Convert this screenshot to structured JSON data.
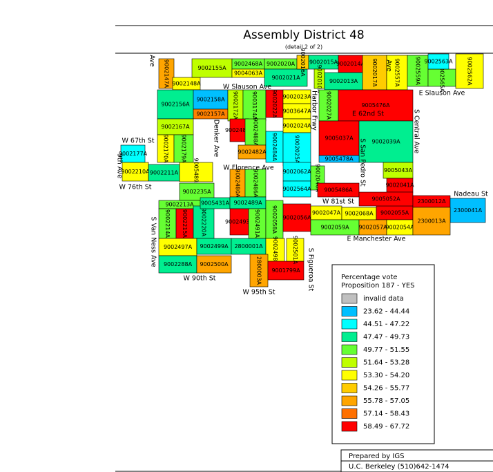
{
  "title": "Assembly District 48",
  "subtitle": "(detail 2 of 2)",
  "precincts": [
    {
      "label": "9002147A",
      "color": "#ffa500"
    },
    {
      "label": "9002148A",
      "color": "#ffff00"
    },
    {
      "label": "9002155A",
      "color": "#bfff00"
    },
    {
      "label": "9002468A",
      "color": "#66ff33"
    },
    {
      "label": "9004063A",
      "color": "#ffff00"
    },
    {
      "label": "9002020A",
      "color": "#66ff33"
    },
    {
      "label": "9002021A",
      "color": "#00ee90"
    },
    {
      "label": "9002016A",
      "color": "#ffcc00"
    },
    {
      "label": "9002015A",
      "color": "#00ee90"
    },
    {
      "label": "9002014A",
      "color": "#ff0000"
    },
    {
      "label": "9002010A",
      "color": "#bfff00"
    },
    {
      "label": "9002013A",
      "color": "#00ee90"
    },
    {
      "label": "9002017A",
      "color": "#ffcc00"
    },
    {
      "label": "9002557A",
      "color": "#ffff00"
    },
    {
      "label": "9002559A",
      "color": "#66ff33"
    },
    {
      "label": "9002565A",
      "color": "#66ff33"
    },
    {
      "label": "9002563A",
      "color": "#00ffff"
    },
    {
      "label": "9002562A",
      "color": "#ffff00"
    },
    {
      "label": "9002156A",
      "color": "#00ee90"
    },
    {
      "label": "9002158A",
      "color": "#00bfff"
    },
    {
      "label": "9002157A",
      "color": "#ff8000"
    },
    {
      "label": "9002172A",
      "color": "#bfff00"
    },
    {
      "label": "9003174A",
      "color": "#66ff33"
    },
    {
      "label": "9002022A",
      "color": "#ff0000"
    },
    {
      "label": "9002023A",
      "color": "#ffff00"
    },
    {
      "label": "9003647A",
      "color": "#ffff00"
    },
    {
      "label": "9002027A",
      "color": "#66ff33"
    },
    {
      "label": "9005476A",
      "color": "#ff0000"
    },
    {
      "label": "9002167A",
      "color": "#bfff00"
    },
    {
      "label": "9002170A",
      "color": "#ffff00"
    },
    {
      "label": "9002177A",
      "color": "#00ffff"
    },
    {
      "label": "9002179A",
      "color": "#66ff33"
    },
    {
      "label": "9002483A",
      "color": "#ff0000"
    },
    {
      "label": "9002488A",
      "color": "#66ff33"
    },
    {
      "label": "9002482A",
      "color": "#ffa500"
    },
    {
      "label": "9002484A",
      "color": "#00ffff"
    },
    {
      "label": "9002024A",
      "color": "#ffff00"
    },
    {
      "label": "9002025A",
      "color": "#00ffff"
    },
    {
      "label": "9005037A",
      "color": "#ff0000"
    },
    {
      "label": "9002039A",
      "color": "#00ee90"
    },
    {
      "label": "9005478A",
      "color": "#00bfff"
    },
    {
      "label": "9002210A",
      "color": "#ffff00"
    },
    {
      "label": "9002211A",
      "color": "#00ee90"
    },
    {
      "label": "9005489A",
      "color": "#ffff00"
    },
    {
      "label": "9002480A",
      "color": "#ffa500"
    },
    {
      "label": "9002486A",
      "color": "#66ff33"
    },
    {
      "label": "9002062A",
      "color": "#00ffff"
    },
    {
      "label": "9002564A",
      "color": "#00ffff"
    },
    {
      "label": "9002040A",
      "color": "#66ff33"
    },
    {
      "label": "9005486A",
      "color": "#ff0000"
    },
    {
      "label": "9005043A",
      "color": "#bfff00"
    },
    {
      "label": "9002041A",
      "color": "#ff0000"
    },
    {
      "label": "9002235A",
      "color": "#66ff33"
    },
    {
      "label": "9002213A",
      "color": "#66ff33"
    },
    {
      "label": "9002214A",
      "color": "#66ff33"
    },
    {
      "label": "9002215A",
      "color": "#ff0000"
    },
    {
      "label": "9002220A",
      "color": "#00ee90"
    },
    {
      "label": "9005431A",
      "color": "#00ee90"
    },
    {
      "label": "9002489A",
      "color": "#00ee90"
    },
    {
      "label": "9002493A",
      "color": "#ff0000"
    },
    {
      "label": "9002491A",
      "color": "#66ff33"
    },
    {
      "label": "9002058A",
      "color": "#66ff33"
    },
    {
      "label": "9002056A",
      "color": "#ff0000"
    },
    {
      "label": "9002047A",
      "color": "#ffff00"
    },
    {
      "label": "9002068A",
      "color": "#ffff00"
    },
    {
      "label": "9002055A",
      "color": "#ff0000"
    },
    {
      "label": "9002059A",
      "color": "#66ff33"
    },
    {
      "label": "9002057A",
      "color": "#ffa500"
    },
    {
      "label": "9002054A",
      "color": "#ffff00"
    },
    {
      "label": "9005052A",
      "color": "#ff0000"
    },
    {
      "label": "2300012A",
      "color": "#ff0000"
    },
    {
      "label": "2300041A",
      "color": "#00bfff"
    },
    {
      "label": "2300013A",
      "color": "#ffa500"
    },
    {
      "label": "9002497A",
      "color": "#ffff00"
    },
    {
      "label": "9002499A",
      "color": "#00ee90"
    },
    {
      "label": "2800001A",
      "color": "#00ee90"
    },
    {
      "label": "9002498A",
      "color": "#ffff00"
    },
    {
      "label": "9002288A",
      "color": "#00ee90"
    },
    {
      "label": "9002500A",
      "color": "#ffa500"
    },
    {
      "label": "2800003A",
      "color": "#ffa500"
    },
    {
      "label": "9001799A",
      "color": "#ff0000"
    },
    {
      "label": "9002501A",
      "color": "#ffff00"
    }
  ],
  "streets": [
    "W Slauson Ave",
    "E Slauson Ave",
    "E 62nd St",
    "Harbor Frwy",
    "W 67th St",
    "S Central Ave",
    "S San Pedro St",
    "Denker Ave",
    "W Florence Ave",
    "W 76th St",
    "9th Ave",
    "W 81st St",
    "Nadeau St",
    "E Manchester Ave",
    "S Van Ness Ave",
    "W 90th St",
    "W 95th St",
    "S Figueroa St",
    "Ave",
    "Ave"
  ],
  "legend": {
    "title": [
      "Percentage vote",
      "Proposition 187 - YES"
    ],
    "items": [
      {
        "label": "invalid data",
        "color": "#c0c0c0"
      },
      {
        "label": "23.62 - 44.44",
        "color": "#00bfff"
      },
      {
        "label": "44.51 - 47.22",
        "color": "#00ffff"
      },
      {
        "label": "47.47 - 49.73",
        "color": "#00ee90"
      },
      {
        "label": "49.77 - 51.55",
        "color": "#66ff33"
      },
      {
        "label": "51.64 - 53.28",
        "color": "#bfff00"
      },
      {
        "label": "53.30 - 54.20",
        "color": "#ffff00"
      },
      {
        "label": "54.26 - 55.77",
        "color": "#ffcc00"
      },
      {
        "label": "55.78 - 57.05",
        "color": "#ffa500"
      },
      {
        "label": "57.14 - 58.43",
        "color": "#ff7000"
      },
      {
        "label": "58.49 - 67.72",
        "color": "#ff0000"
      }
    ]
  },
  "credit": [
    "Prepared by IGS",
    "U.C. Berkeley (510)642-1474"
  ]
}
